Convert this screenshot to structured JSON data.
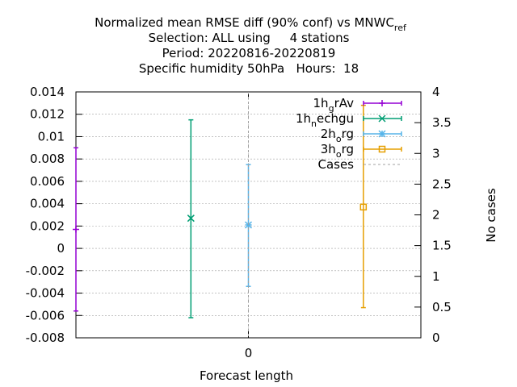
{
  "chart_data": {
    "type": "line",
    "title_lines": [
      "Normalized mean RMSE diff (90% conf) vs MNWC",
      "Selection: ALL using     4 stations",
      "Period: 20220816-20220819",
      "Specific humidity 50hPa   Hours:  18"
    ],
    "title_subscript": "ref",
    "xlabel": "Forecast length",
    "ylabel": "",
    "y2label": "No cases",
    "x_ticks": [
      "0"
    ],
    "ylim": [
      -0.008,
      0.014
    ],
    "y_ticks": [
      "0.014",
      "0.012",
      "0.01",
      "0.008",
      "0.006",
      "0.004",
      "0.002",
      "0",
      "-0.002",
      "-0.004",
      "-0.006",
      "-0.008"
    ],
    "y2lim": [
      0,
      4
    ],
    "y2_ticks": [
      "4",
      "3.5",
      "3",
      "2.5",
      "2",
      "1.5",
      "1",
      "0.5",
      "0"
    ],
    "grid": true,
    "legend_position": "top-right",
    "series": [
      {
        "label_main": "1h",
        "label_sub": "g",
        "label_rest": "rAv",
        "color": "#9400d3",
        "marker": "plus",
        "x": -1.5,
        "mean": 0.0017,
        "low": -0.0056,
        "high": 0.009
      },
      {
        "label_main": "1h",
        "label_sub": "n",
        "label_rest": "echgu",
        "color": "#009e73",
        "marker": "cross",
        "x": -0.5,
        "mean": 0.0027,
        "low": -0.0062,
        "high": 0.0115
      },
      {
        "label_main": "2h",
        "label_sub": "o",
        "label_rest": "rg",
        "color": "#56b4e9",
        "marker": "star",
        "x": 0,
        "mean": 0.0021,
        "low": -0.0034,
        "high": 0.0075
      },
      {
        "label_main": "3h",
        "label_sub": "o",
        "label_rest": "rg",
        "color": "#e69f00",
        "marker": "square",
        "x": 1,
        "mean": 0.0037,
        "low": -0.0053,
        "high": 0.0128
      },
      {
        "label_main": "Cases",
        "label_sub": "",
        "label_rest": "",
        "color": "#a0a0a0",
        "marker": "dashed",
        "x": 0,
        "value": 4
      }
    ]
  }
}
